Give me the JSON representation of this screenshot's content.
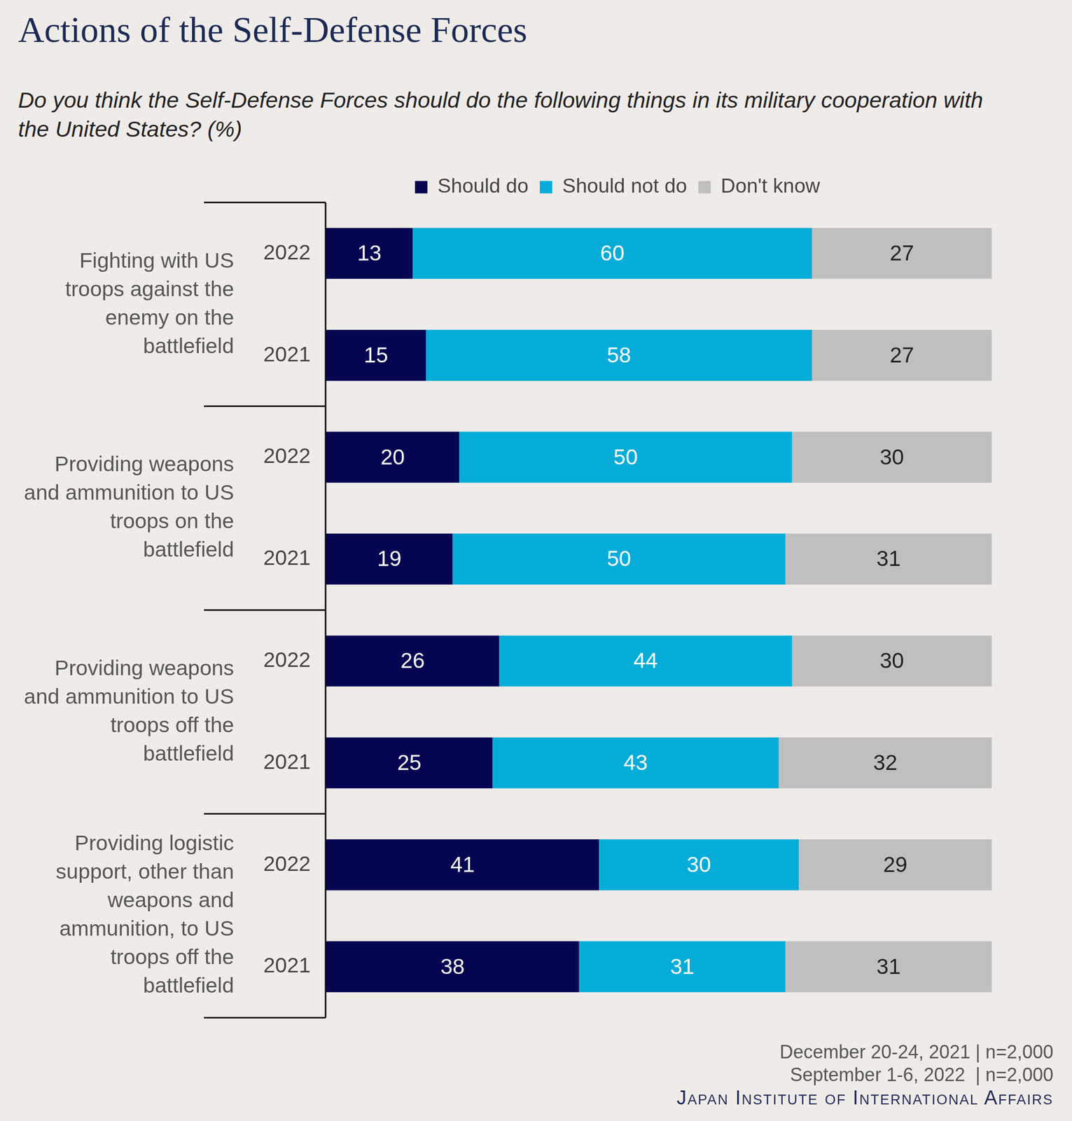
{
  "chart_data": {
    "type": "bar",
    "title": "Actions of the Self-Defense Forces",
    "subtitle": "Do you think the Self-Defense Forces should do the following things in its military cooperation with the United States? (%)",
    "orientation": "horizontal",
    "stacked": true,
    "data_labels": true,
    "legend": "top",
    "tick_labels": "y",
    "grid": false,
    "xlim": [
      0,
      100
    ],
    "groups": [
      "Fighting with US troops against the enemy on the battlefield",
      "Providing weapons and ammunition to US troops on the battlefield",
      "Providing weapons and ammunition to US troops off the battlefield",
      "Providing logistic support, other than weapons and ammunition, to US troops off the battlefield"
    ],
    "categories": [
      "2022",
      "2021",
      "2022",
      "2021",
      "2022",
      "2021",
      "2022",
      "2021"
    ],
    "series": [
      {
        "name": "Should do",
        "color": "#050552",
        "values": [
          13,
          15,
          20,
          19,
          26,
          25,
          41,
          38
        ]
      },
      {
        "name": "Should not do",
        "color": "#06acd8",
        "values": [
          60,
          58,
          50,
          50,
          44,
          43,
          30,
          31
        ]
      },
      {
        "name": "Don't know",
        "color": "#bfbfbf",
        "values": [
          27,
          27,
          30,
          31,
          30,
          32,
          29,
          31
        ]
      }
    ],
    "notes": [
      "December 20-24, 2021 | n=2,000",
      "September 1-6, 2022  | n=2,000"
    ],
    "source": "Japan Institute of International Affairs"
  }
}
